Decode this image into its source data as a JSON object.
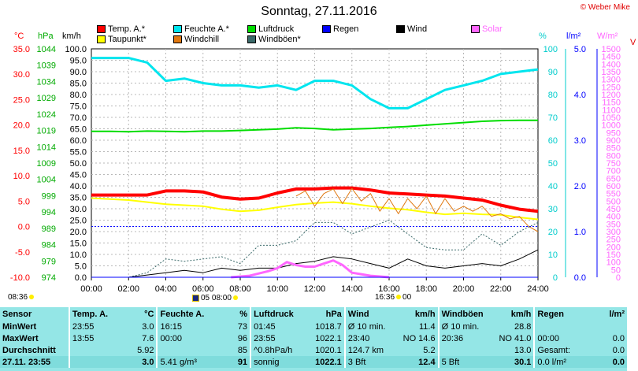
{
  "title": "Sonntag, 27.11.2016",
  "copyright": "© Weber Mike",
  "colors": {
    "temp": "#ff0000",
    "dewpoint": "#ffff00",
    "humidity": "#00e5ee",
    "windchill": "#e07810",
    "pressure": "#00dd00",
    "gusts": "#3a6a6a",
    "rain": "#0000ff",
    "wind": "#000000",
    "solar": "#ff66ff",
    "panel": "#94e6e6"
  },
  "legend": [
    {
      "label": "Temp. A.*",
      "color": "#ff0000"
    },
    {
      "label": "Taupunkt*",
      "color": "#ffff00"
    },
    {
      "label": "Feuchte A.*",
      "color": "#00e5ee"
    },
    {
      "label": "Windchill",
      "color": "#e07810"
    },
    {
      "label": "Luftdruck",
      "color": "#00dd00"
    },
    {
      "label": "Windböen*",
      "color": "#3a6a6a"
    },
    {
      "label": "Regen",
      "color": "#0000ff"
    },
    {
      "label": "Wind",
      "color": "#000000"
    },
    {
      "label": "Solar",
      "color": "#ff66ff"
    }
  ],
  "axis_titles": {
    "temp": "°C",
    "pressure": "hPa",
    "wind": "km/h",
    "humidity": "%",
    "rain": "l/m²",
    "solar": "W/m²",
    "clipped": "V"
  },
  "sun": {
    "sunrise": "08:36",
    "moon_text": "05 08:00",
    "sunset": "16:36",
    "sunset_suffix": "00"
  },
  "stats": {
    "headers": [
      "Sensor",
      "Temp. A.",
      "°C",
      "Feuchte A.",
      "%",
      "Luftdruck",
      "hPa",
      "Wind",
      "km/h",
      "Windböen",
      "km/h",
      "Regen",
      "l/m²"
    ],
    "rows": [
      [
        "MinWert",
        "23:55",
        "3.0",
        "16:15",
        "73",
        "01:45",
        "1018.7",
        "Ø 10 min.",
        "11.4",
        "Ø 10 min.",
        "28.8",
        "",
        ""
      ],
      [
        "MaxWert",
        "13:55",
        "7.6",
        "00:00",
        "96",
        "23:55",
        "1022.1",
        "23:40",
        "NO 14.6",
        "20:36",
        "NO 41.0",
        "00:00",
        "0.0"
      ],
      [
        "Durchschnitt",
        "",
        "5.92",
        "",
        "85",
        "^0.8hPa/h",
        "1020.1",
        "124.7 km",
        "5.2",
        "",
        "13.0",
        "Gesamt:",
        "0.0"
      ],
      [
        "27.11. 23:55",
        "",
        "3.0",
        "5.41 g/m³",
        "91",
        "sonnig",
        "1022.1",
        "3 Bft",
        "12.4",
        "5 Bft",
        "30.1",
        "0.0 l/m²",
        "0.0"
      ]
    ]
  },
  "chart_data": {
    "type": "line",
    "x_label_ticks": [
      "00:00",
      "02:00",
      "04:00",
      "06:00",
      "08:00",
      "10:00",
      "12:00",
      "14:00",
      "16:00",
      "18:00",
      "20:00",
      "22:00",
      "24:00"
    ],
    "y_axes": {
      "temp": {
        "unit": "°C",
        "range": [
          -10,
          35
        ],
        "ticks": [
          "35.0",
          "30.0",
          "25.0",
          "20.0",
          "15.0",
          "10.0",
          "5.0",
          "0.0",
          "-5.0",
          "-10.0"
        ]
      },
      "pressure": {
        "unit": "hPa",
        "range": [
          974,
          1044
        ],
        "ticks": [
          "1044",
          "1039",
          "1034",
          "1029",
          "1024",
          "1019",
          "1014",
          "1009",
          "1004",
          "999",
          "994",
          "989",
          "984",
          "979",
          "974"
        ]
      },
      "wind": {
        "unit": "km/h",
        "range": [
          0,
          100
        ],
        "ticks": [
          "100.0",
          "95.0",
          "90.0",
          "85.0",
          "80.0",
          "75.0",
          "70.0",
          "65.0",
          "60.0",
          "55.0",
          "50.0",
          "45.0",
          "40.0",
          "35.0",
          "30.0",
          "25.0",
          "20.0",
          "15.0",
          "10.0",
          "5.0",
          "0.0"
        ]
      },
      "humidity": {
        "unit": "%",
        "range": [
          0,
          100
        ],
        "ticks": [
          "100",
          "90",
          "80",
          "70",
          "60",
          "50",
          "40",
          "30",
          "20",
          "10",
          "0"
        ]
      },
      "rain": {
        "unit": "l/m²",
        "range": [
          0,
          5
        ],
        "ticks": [
          "5.0",
          "4.0",
          "3.0",
          "2.0",
          "1.0",
          "0.0"
        ]
      },
      "solar": {
        "unit": "W/m²",
        "range": [
          0,
          1500
        ],
        "ticks": [
          "1500",
          "1450",
          "1400",
          "1350",
          "1300",
          "1250",
          "1200",
          "1150",
          "1100",
          "1050",
          "1000",
          "950",
          "900",
          "850",
          "800",
          "750",
          "700",
          "650",
          "600",
          "550",
          "500",
          "450",
          "400",
          "350",
          "300",
          "250",
          "200",
          "150",
          "100",
          "50",
          "0"
        ]
      }
    },
    "series": [
      {
        "name": "Temp. A.*",
        "axis": "temp",
        "x": [
          0,
          1,
          2,
          3,
          4,
          5,
          6,
          7,
          8,
          9,
          10,
          11,
          12,
          13,
          14,
          15,
          16,
          17,
          18,
          19,
          20,
          21,
          22,
          23,
          24
        ],
        "values": [
          6.2,
          6.2,
          6.2,
          6.2,
          7.0,
          7.0,
          6.8,
          5.8,
          5.4,
          5.6,
          6.6,
          7.4,
          7.4,
          7.6,
          7.6,
          7.2,
          6.6,
          6.4,
          6.2,
          6.0,
          5.6,
          5.2,
          4.2,
          3.4,
          3.0
        ]
      },
      {
        "name": "Taupunkt*",
        "axis": "temp",
        "x": [
          0,
          1,
          2,
          3,
          4,
          5,
          6,
          7,
          8,
          9,
          10,
          11,
          12,
          13,
          14,
          15,
          16,
          17,
          18,
          19,
          20,
          21,
          22,
          23,
          24
        ],
        "values": [
          5.6,
          5.4,
          5.2,
          4.8,
          4.4,
          4.2,
          4.0,
          3.4,
          3.0,
          3.2,
          3.8,
          4.3,
          4.6,
          4.8,
          4.5,
          4.0,
          3.6,
          3.3,
          2.8,
          2.4,
          2.6,
          2.4,
          2.3,
          1.8,
          1.4
        ]
      },
      {
        "name": "Feuchte A.*",
        "axis": "humidity",
        "x": [
          0,
          1,
          2,
          3,
          4,
          5,
          6,
          7,
          8,
          9,
          10,
          11,
          12,
          13,
          14,
          15,
          16,
          17,
          18,
          19,
          20,
          21,
          22,
          23,
          24
        ],
        "values": [
          96,
          96,
          96,
          94,
          86,
          87,
          85,
          84,
          84,
          83,
          84,
          82,
          86,
          86,
          84,
          78,
          74,
          74,
          78,
          82,
          84,
          86,
          89,
          90,
          91
        ]
      },
      {
        "name": "Luftdruck",
        "axis": "pressure",
        "x": [
          0,
          1,
          2,
          3,
          4,
          5,
          6,
          7,
          8,
          9,
          10,
          11,
          12,
          13,
          14,
          15,
          16,
          17,
          18,
          19,
          20,
          21,
          22,
          23,
          24
        ],
        "values": [
          1018.7,
          1018.7,
          1018.6,
          1018.8,
          1018.7,
          1018.6,
          1018.8,
          1018.8,
          1019.0,
          1019.2,
          1019.4,
          1019.8,
          1019.6,
          1019.2,
          1019.4,
          1019.6,
          1019.9,
          1020.2,
          1020.6,
          1021.0,
          1021.4,
          1021.8,
          1022.0,
          1022.1,
          1022.1
        ]
      },
      {
        "name": "Windchill",
        "axis": "temp",
        "x": [
          11,
          11.5,
          12,
          12.5,
          13,
          13.5,
          14,
          14.5,
          15,
          15.5,
          16,
          16.5,
          17,
          17.5,
          18,
          18.5,
          19,
          19.5,
          20,
          20.5,
          21,
          21.5,
          22,
          22.5,
          23,
          23.5,
          24
        ],
        "values": [
          6.0,
          7.0,
          4.0,
          6.5,
          7.4,
          4.5,
          7.5,
          5.0,
          6.5,
          3.0,
          5.5,
          2.5,
          5.5,
          3.5,
          6.0,
          2.5,
          5.5,
          3.0,
          4.0,
          3.0,
          4.0,
          2.0,
          2.5,
          1.5,
          2.0,
          0.0,
          -1.0
        ]
      },
      {
        "name": "Windböen*",
        "axis": "wind",
        "x": [
          0,
          1,
          2,
          3,
          4,
          5,
          6,
          7,
          8,
          9,
          10,
          11,
          12,
          13,
          14,
          15,
          16,
          17,
          18,
          19,
          20,
          21,
          22,
          23,
          24
        ],
        "values": [
          0,
          0,
          0,
          2,
          8,
          7,
          8,
          9,
          6,
          14,
          14,
          16,
          24,
          24,
          19,
          22,
          25,
          19,
          13,
          12,
          12,
          19,
          14,
          20,
          24
        ]
      },
      {
        "name": "Wind",
        "axis": "wind",
        "x": [
          0,
          1,
          2,
          3,
          4,
          5,
          6,
          7,
          8,
          9,
          10,
          11,
          12,
          13,
          14,
          15,
          16,
          17,
          18,
          19,
          20,
          21,
          22,
          23,
          24
        ],
        "values": [
          0,
          0,
          0,
          1,
          2,
          3,
          2,
          4,
          3,
          4,
          4,
          6,
          7,
          9,
          8,
          6,
          4,
          8,
          5,
          4,
          5,
          6,
          5,
          8,
          12
        ]
      },
      {
        "name": "Solar",
        "axis": "solar",
        "x": [
          7.5,
          8.5,
          9.5,
          10,
          10.5,
          11,
          11.5,
          12,
          12.5,
          13,
          13.5,
          14,
          14.5,
          15,
          15.5,
          16
        ],
        "values": [
          0,
          10,
          40,
          60,
          100,
          80,
          70,
          70,
          90,
          110,
          80,
          30,
          20,
          10,
          5,
          0
        ]
      },
      {
        "name": "Regen",
        "axis": "rain",
        "x": [
          0,
          24
        ],
        "values": [
          0,
          0
        ]
      }
    ],
    "grid": true,
    "legend_position": "top"
  }
}
